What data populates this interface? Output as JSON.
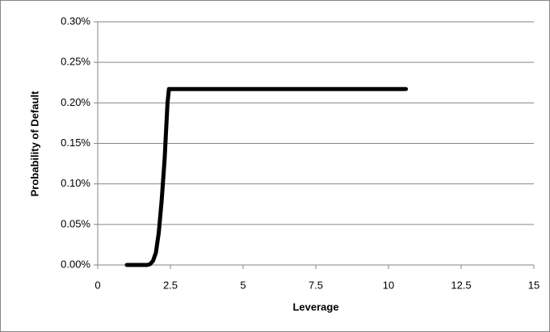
{
  "chart_data": {
    "type": "line",
    "x_label": "Leverage",
    "y_label": "Probability of Default",
    "series": [
      {
        "color": "#000000",
        "x": [
          1.0,
          1.5,
          1.7,
          1.8,
          1.9,
          2.0,
          2.1,
          2.2,
          2.3,
          2.35,
          2.4,
          2.45,
          3,
          4,
          5,
          6,
          7,
          8,
          9,
          10,
          10.6
        ],
        "values": [
          0,
          0,
          0,
          0.001,
          0.005,
          0.015,
          0.04,
          0.08,
          0.13,
          0.165,
          0.2,
          0.217,
          0.217,
          0.217,
          0.217,
          0.217,
          0.217,
          0.217,
          0.217,
          0.217,
          0.217
        ]
      }
    ],
    "xlim": [
      0,
      15
    ],
    "xticks": [
      0,
      2.5,
      5,
      7.5,
      10,
      12.5,
      15
    ],
    "ylim": [
      0,
      0.3
    ],
    "yticks": [
      {
        "value": 0,
        "label": "0.00%"
      },
      {
        "value": 0.05,
        "label": "0.05%"
      },
      {
        "value": 0.1,
        "label": "0.10%"
      },
      {
        "value": 0.15,
        "label": "0.15%"
      },
      {
        "value": 0.2,
        "label": "0.20%"
      },
      {
        "value": 0.25,
        "label": "0.25%"
      },
      {
        "value": 0.3,
        "label": "0.30%"
      }
    ],
    "grid": true
  }
}
